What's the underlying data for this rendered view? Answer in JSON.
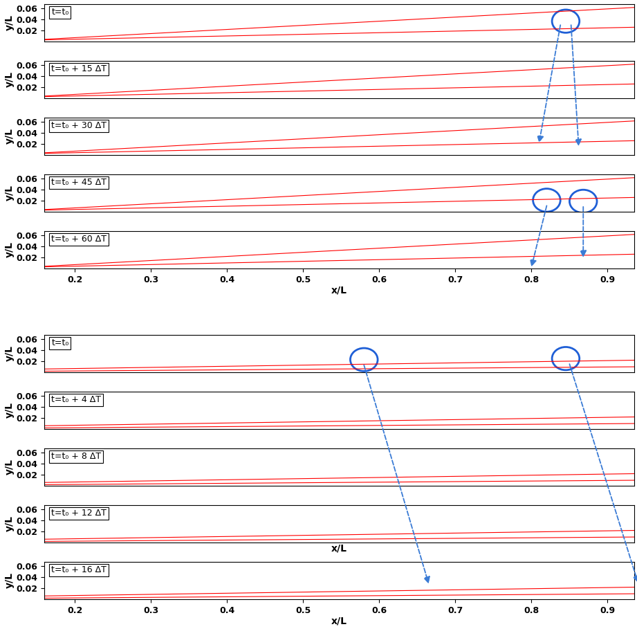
{
  "chart_data": [
    {
      "type": "line",
      "label": "t=t₀",
      "y_label": "y/L",
      "xlim": [
        0.16,
        0.935
      ],
      "ylim": [
        0,
        0.068
      ],
      "yticks": [
        0.02,
        0.04,
        0.06
      ],
      "tick_labels": "y",
      "series": [
        {
          "color": "#ff0000",
          "x": [
            0.16,
            0.935
          ],
          "values": [
            0.004,
            0.062
          ]
        },
        {
          "color": "#ff0000",
          "x": [
            0.16,
            0.935
          ],
          "values": [
            0.003,
            0.026
          ]
        }
      ],
      "circles": [
        {
          "x": 0.845,
          "y": 0.037,
          "color": "#1f5fd6"
        }
      ],
      "arrows": [
        {
          "to_panel": 2,
          "from": [
            0.838,
            0.03
          ],
          "to": [
            0.81,
            0.022
          ],
          "color": "#3a7bd5"
        },
        {
          "to_panel": 2,
          "from": [
            0.852,
            0.03
          ],
          "to": [
            0.862,
            0.016
          ],
          "color": "#3a7bd5"
        }
      ]
    },
    {
      "type": "line",
      "label": "t=t₀ + 15 ΔT",
      "y_label": "y/L",
      "xlim": [
        0.16,
        0.935
      ],
      "ylim": [
        0,
        0.068
      ],
      "yticks": [
        0.02,
        0.04,
        0.06
      ],
      "tick_labels": "y",
      "series": [
        {
          "color": "#ff0000",
          "x": [
            0.16,
            0.935
          ],
          "values": [
            0.004,
            0.062
          ]
        },
        {
          "color": "#ff0000",
          "x": [
            0.16,
            0.935
          ],
          "values": [
            0.003,
            0.026
          ]
        }
      ]
    },
    {
      "type": "line",
      "label": "t=t₀ + 30 ΔT",
      "y_label": "y/L",
      "xlim": [
        0.16,
        0.935
      ],
      "ylim": [
        0,
        0.068
      ],
      "yticks": [
        0.02,
        0.04,
        0.06
      ],
      "tick_labels": "y",
      "series": [
        {
          "color": "#ff0000",
          "x": [
            0.16,
            0.935
          ],
          "values": [
            0.004,
            0.062
          ]
        },
        {
          "color": "#ff0000",
          "x": [
            0.16,
            0.935
          ],
          "values": [
            0.003,
            0.026
          ]
        }
      ]
    },
    {
      "type": "line",
      "label": "t=t₀ + 45 ΔT",
      "y_label": "y/L",
      "xlim": [
        0.16,
        0.935
      ],
      "ylim": [
        0,
        0.068
      ],
      "yticks": [
        0.02,
        0.04,
        0.06
      ],
      "tick_labels": "y",
      "series": [
        {
          "color": "#ff0000",
          "x": [
            0.16,
            0.935
          ],
          "values": [
            0.004,
            0.062
          ]
        },
        {
          "color": "#ff0000",
          "x": [
            0.16,
            0.935
          ],
          "values": [
            0.003,
            0.026
          ]
        }
      ],
      "circles": [
        {
          "x": 0.82,
          "y": 0.021,
          "color": "#1f5fd6"
        },
        {
          "x": 0.868,
          "y": 0.019,
          "color": "#1f5fd6"
        }
      ],
      "arrows": [
        {
          "to_panel": 4,
          "from": [
            0.82,
            0.011
          ],
          "to": [
            0.8,
            0.003
          ],
          "color": "#3a7bd5"
        },
        {
          "to_panel": 4,
          "from": [
            0.868,
            0.009
          ],
          "to": [
            0.868,
            0.02
          ],
          "color": "#3a7bd5"
        }
      ]
    },
    {
      "type": "line",
      "label": "t=t₀ + 60 ΔT",
      "y_label": "y/L",
      "x_label": "x/L",
      "xlim": [
        0.16,
        0.935
      ],
      "ylim": [
        0,
        0.068
      ],
      "yticks": [
        0.02,
        0.04,
        0.06
      ],
      "xticks": [
        0.2,
        0.3,
        0.4,
        0.5,
        0.6,
        0.7,
        0.8,
        0.9
      ],
      "series": [
        {
          "color": "#ff0000",
          "x": [
            0.16,
            0.935
          ],
          "values": [
            0.004,
            0.062
          ]
        },
        {
          "color": "#ff0000",
          "x": [
            0.16,
            0.935
          ],
          "values": [
            0.003,
            0.026
          ]
        }
      ]
    },
    {
      "type": "line",
      "label": "t=t₀",
      "y_label": "y/L",
      "xlim": [
        0.16,
        0.935
      ],
      "ylim": [
        0,
        0.068
      ],
      "yticks": [
        0.02,
        0.04,
        0.06
      ],
      "tick_labels": "y",
      "series": [
        {
          "color": "#ff0000",
          "x": [
            0.16,
            0.935
          ],
          "values": [
            0.006,
            0.022
          ]
        },
        {
          "color": "#ff0000",
          "x": [
            0.16,
            0.935
          ],
          "values": [
            0.002,
            0.01
          ]
        }
      ],
      "circles": [
        {
          "x": 0.58,
          "y": 0.023,
          "color": "#1f5fd6"
        },
        {
          "x": 0.845,
          "y": 0.025,
          "color": "#1f5fd6"
        }
      ],
      "arrows": [
        {
          "to_panel": 9,
          "from": [
            0.58,
            0.013
          ],
          "to": [
            0.665,
            0.028
          ],
          "color": "#3a7bd5"
        },
        {
          "to_panel": 9,
          "from": [
            0.85,
            0.015
          ],
          "to": [
            0.94,
            0.03
          ],
          "color": "#3a7bd5"
        }
      ]
    },
    {
      "type": "line",
      "label": "t=t₀ + 4 ΔT",
      "y_label": "y/L",
      "xlim": [
        0.16,
        0.935
      ],
      "ylim": [
        0,
        0.068
      ],
      "yticks": [
        0.02,
        0.04,
        0.06
      ],
      "tick_labels": "y",
      "series": [
        {
          "color": "#ff0000",
          "x": [
            0.16,
            0.935
          ],
          "values": [
            0.006,
            0.022
          ]
        },
        {
          "color": "#ff0000",
          "x": [
            0.16,
            0.935
          ],
          "values": [
            0.002,
            0.01
          ]
        }
      ]
    },
    {
      "type": "line",
      "label": "t=t₀ + 8 ΔT",
      "y_label": "y/L",
      "xlim": [
        0.16,
        0.935
      ],
      "ylim": [
        0,
        0.068
      ],
      "yticks": [
        0.02,
        0.04,
        0.06
      ],
      "tick_labels": "y",
      "series": [
        {
          "color": "#ff0000",
          "x": [
            0.16,
            0.935
          ],
          "values": [
            0.006,
            0.022
          ]
        },
        {
          "color": "#ff0000",
          "x": [
            0.16,
            0.935
          ],
          "values": [
            0.002,
            0.01
          ]
        }
      ]
    },
    {
      "type": "line",
      "label": "t=t₀ + 12 ΔT",
      "y_label": "y/L",
      "x_label": "x/L",
      "xlim": [
        0.16,
        0.935
      ],
      "ylim": [
        0,
        0.068
      ],
      "yticks": [
        0.02,
        0.04,
        0.06
      ],
      "tick_labels": "y",
      "series": [
        {
          "color": "#ff0000",
          "x": [
            0.16,
            0.935
          ],
          "values": [
            0.006,
            0.022
          ]
        },
        {
          "color": "#ff0000",
          "x": [
            0.16,
            0.935
          ],
          "values": [
            0.002,
            0.01
          ]
        }
      ]
    },
    {
      "type": "line",
      "label": "t=t₀ + 16 ΔT",
      "y_label": "y/L",
      "x_label": "x/L",
      "xlim": [
        0.16,
        0.935
      ],
      "ylim": [
        0,
        0.068
      ],
      "yticks": [
        0.02,
        0.04,
        0.06
      ],
      "xticks": [
        0.2,
        0.3,
        0.4,
        0.5,
        0.6,
        0.7,
        0.8,
        0.9
      ],
      "series": [
        {
          "color": "#ff0000",
          "x": [
            0.16,
            0.935
          ],
          "values": [
            0.006,
            0.022
          ]
        },
        {
          "color": "#ff0000",
          "x": [
            0.16,
            0.935
          ],
          "values": [
            0.002,
            0.01
          ]
        }
      ]
    }
  ]
}
